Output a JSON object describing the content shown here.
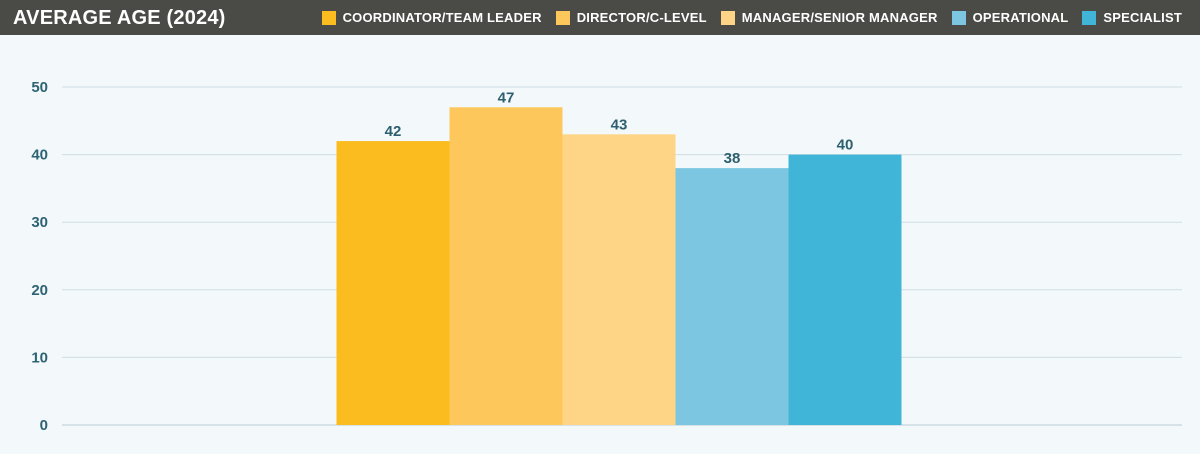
{
  "chart_data": {
    "type": "bar",
    "title": "AVERAGE AGE (2024)",
    "xlabel": "",
    "ylabel": "",
    "ylim": [
      0,
      50
    ],
    "yticks": [
      "0",
      "10",
      "20",
      "30",
      "40",
      "50"
    ],
    "grid": true,
    "legend_placement": "top-right",
    "series": [
      {
        "name": "COORDINATOR/TEAM LEADER",
        "value": 42,
        "label": "42",
        "color": "#fbbc20"
      },
      {
        "name": "DIRECTOR/C-LEVEL",
        "value": 47,
        "label": "47",
        "color": "#fec75c"
      },
      {
        "name": "MANAGER/SENIOR MANAGER",
        "value": 43,
        "label": "43",
        "color": "#fed586"
      },
      {
        "name": "OPERATIONAL",
        "value": 38,
        "label": "38",
        "color": "#7cc6e1"
      },
      {
        "name": "SPECIALIST",
        "value": 40,
        "label": "40",
        "color": "#40b5d8"
      }
    ]
  }
}
